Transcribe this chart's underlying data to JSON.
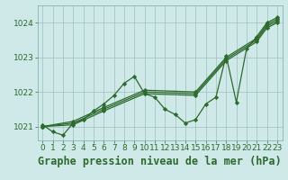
{
  "background_color": "#cfe8e8",
  "plot_bg_color": "#cfe8e8",
  "grid_color": "#9dbfbf",
  "line_color": "#2d6a2d",
  "marker_color": "#2d6a2d",
  "title": "Graphe pression niveau de la mer (hPa)",
  "xlim": [
    -0.5,
    23.5
  ],
  "ylim": [
    1020.6,
    1024.5
  ],
  "yticks": [
    1021,
    1022,
    1023,
    1024
  ],
  "xticks": [
    0,
    1,
    2,
    3,
    4,
    5,
    6,
    7,
    8,
    9,
    10,
    11,
    12,
    13,
    14,
    15,
    16,
    17,
    18,
    19,
    20,
    21,
    22,
    23
  ],
  "series": [
    {
      "x": [
        0,
        1,
        2,
        3,
        4,
        5,
        6,
        7,
        8,
        9,
        10,
        11,
        12,
        13,
        14,
        15,
        16,
        17,
        18,
        19,
        20,
        21,
        22,
        23
      ],
      "y": [
        1021.05,
        1020.85,
        1020.75,
        1021.1,
        1021.2,
        1021.45,
        1021.65,
        1021.9,
        1022.25,
        1022.45,
        1021.95,
        1021.85,
        1021.5,
        1021.35,
        1021.1,
        1021.2,
        1021.65,
        1021.85,
        1023.05,
        1021.7,
        1023.25,
        1023.6,
        1024.0,
        1024.15
      ]
    },
    {
      "x": [
        0,
        3,
        6,
        10,
        15,
        18,
        21,
        22,
        23
      ],
      "y": [
        1021.0,
        1021.15,
        1021.55,
        1022.05,
        1022.0,
        1023.0,
        1023.55,
        1023.95,
        1024.1
      ]
    },
    {
      "x": [
        0,
        3,
        6,
        10,
        15,
        18,
        21,
        22,
        23
      ],
      "y": [
        1021.0,
        1021.1,
        1021.5,
        1022.0,
        1021.95,
        1022.95,
        1023.5,
        1023.9,
        1024.05
      ]
    },
    {
      "x": [
        0,
        3,
        6,
        10,
        15,
        18,
        21,
        22,
        23
      ],
      "y": [
        1021.0,
        1021.05,
        1021.45,
        1021.95,
        1021.9,
        1022.9,
        1023.45,
        1023.85,
        1024.0
      ]
    }
  ],
  "title_fontsize": 8.5,
  "tick_fontsize": 6.5
}
